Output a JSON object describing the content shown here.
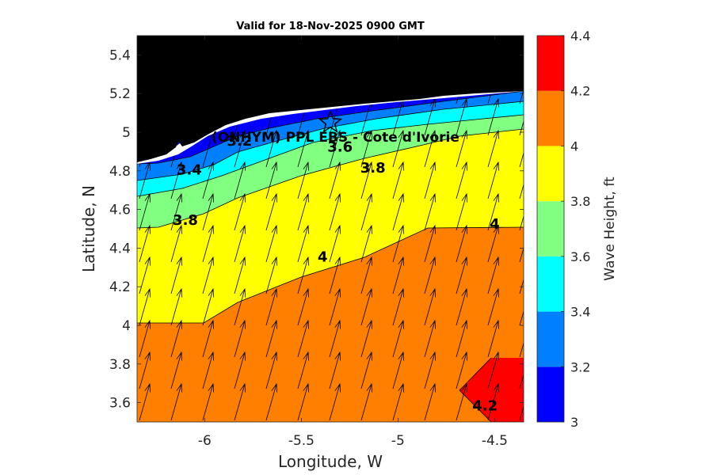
{
  "chart_data": {
    "type": "contour",
    "title": "Valid for 18-Nov-2025 0900 GMT",
    "xlabel": "Longitude, W",
    "ylabel": "Latitude, N",
    "xlim": [
      -6.35,
      -4.35
    ],
    "ylim": [
      3.5,
      5.5
    ],
    "x_ticks": [
      -6,
      -5.5,
      -5,
      -4.5
    ],
    "x_tick_labels": [
      "-6",
      "-5.5",
      "-5",
      "-4.5"
    ],
    "y_ticks": [
      3.6,
      3.8,
      4,
      4.2,
      4.4,
      4.6,
      4.8,
      5,
      5.2,
      5.4
    ],
    "y_tick_labels": [
      "3.6",
      "3.8",
      "4",
      "4.2",
      "4.4",
      "4.6",
      "4.8",
      "5",
      "5.2",
      "5.4"
    ],
    "colorbar": {
      "label": "Wave Height, ft",
      "levels": [
        3,
        3.2,
        3.4,
        3.6,
        3.8,
        4,
        4.2,
        4.4
      ],
      "tick_labels": [
        "3",
        "3.2",
        "3.4",
        "3.6",
        "3.8",
        "4",
        "4.2",
        "4.4"
      ],
      "colors": [
        "#0000ff",
        "#0080ff",
        "#00ffff",
        "#80ff80",
        "#ffff00",
        "#ff8000",
        "#ff0000"
      ]
    },
    "land_color": "#000000",
    "contour_labels": [
      {
        "text": "3.2",
        "lon": -5.82,
        "lat": 4.93
      },
      {
        "text": "3.6",
        "lon": -5.3,
        "lat": 4.9
      },
      {
        "text": "3.4",
        "lon": -6.08,
        "lat": 4.78
      },
      {
        "text": "3.8",
        "lon": -5.13,
        "lat": 4.79
      },
      {
        "text": "3.8",
        "lon": -6.1,
        "lat": 4.52
      },
      {
        "text": "4",
        "lon": -5.39,
        "lat": 4.33
      },
      {
        "text": "4",
        "lon": -4.5,
        "lat": 4.5
      },
      {
        "text": "4.2",
        "lon": -4.55,
        "lat": 3.56
      }
    ],
    "site": {
      "label": "(ONHYM) PPL EBS  - Cote d'Ivorie",
      "lon": -5.35,
      "lat": 5.05
    },
    "wave_direction": "north-northeast"
  }
}
